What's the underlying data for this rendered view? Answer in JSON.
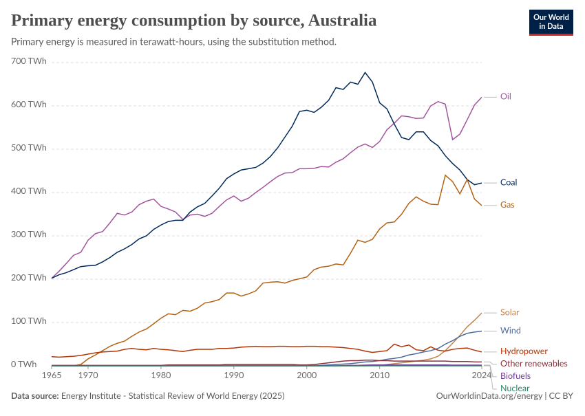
{
  "chart_data": {
    "type": "line",
    "title": "Primary energy consumption by source, Australia",
    "subtitle": "Primary energy is measured in terawatt-hours, using the substitution method.",
    "source_label": "Data source:",
    "source": "Energy Institute - Statistical Review of World Energy (2025)",
    "footer_right": "OurWorldinData.org/energy | CC BY",
    "logo": {
      "line1": "Our World",
      "line2": "in Data"
    },
    "x": [
      1965,
      1966,
      1967,
      1968,
      1969,
      1970,
      1971,
      1972,
      1973,
      1974,
      1975,
      1976,
      1977,
      1978,
      1979,
      1980,
      1981,
      1982,
      1983,
      1984,
      1985,
      1986,
      1987,
      1988,
      1989,
      1990,
      1991,
      1992,
      1993,
      1994,
      1995,
      1996,
      1997,
      1998,
      1999,
      2000,
      2001,
      2002,
      2003,
      2004,
      2005,
      2006,
      2007,
      2008,
      2009,
      2010,
      2011,
      2012,
      2013,
      2014,
      2015,
      2016,
      2017,
      2018,
      2019,
      2020,
      2021,
      2022,
      2023,
      2024
    ],
    "xlim": [
      1965,
      2024
    ],
    "xticks": [
      1965,
      1970,
      1980,
      1990,
      2000,
      2010,
      2024
    ],
    "ylim": [
      0,
      700
    ],
    "yticks": [
      {
        "value": 0,
        "label": "0 TWh"
      },
      {
        "value": 100,
        "label": "100 TWh"
      },
      {
        "value": 200,
        "label": "200 TWh"
      },
      {
        "value": 300,
        "label": "300 TWh"
      },
      {
        "value": 400,
        "label": "400 TWh"
      },
      {
        "value": 500,
        "label": "500 TWh"
      },
      {
        "value": 600,
        "label": "600 TWh"
      },
      {
        "value": 700,
        "label": "700 TWh"
      }
    ],
    "grid": true,
    "series": [
      {
        "name": "Oil",
        "color": "#a2559c",
        "values": [
          202,
          218,
          236,
          255,
          262,
          290,
          305,
          310,
          330,
          352,
          348,
          355,
          372,
          380,
          385,
          368,
          362,
          355,
          338,
          348,
          350,
          345,
          352,
          368,
          383,
          392,
          380,
          387,
          400,
          412,
          425,
          437,
          445,
          446,
          455,
          455,
          456,
          460,
          459,
          470,
          478,
          492,
          505,
          512,
          504,
          518,
          545,
          560,
          577,
          575,
          571,
          572,
          600,
          610,
          604,
          522,
          535,
          568,
          602,
          620
        ]
      },
      {
        "name": "Coal",
        "color": "#00295b",
        "values": [
          202,
          210,
          215,
          222,
          229,
          231,
          232,
          240,
          250,
          262,
          270,
          280,
          293,
          300,
          315,
          325,
          333,
          336,
          336,
          355,
          367,
          375,
          392,
          410,
          432,
          443,
          452,
          455,
          458,
          468,
          483,
          503,
          528,
          553,
          587,
          590,
          585,
          597,
          613,
          642,
          638,
          655,
          650,
          677,
          655,
          607,
          593,
          558,
          527,
          522,
          540,
          540,
          520,
          508,
          485,
          467,
          452,
          430,
          418,
          422
        ]
      },
      {
        "name": "Gas",
        "color": "#b16214",
        "values": [
          0,
          0,
          0,
          0,
          3,
          16,
          25,
          35,
          45,
          52,
          57,
          68,
          78,
          85,
          97,
          110,
          120,
          118,
          128,
          126,
          133,
          145,
          148,
          153,
          168,
          168,
          161,
          166,
          173,
          191,
          193,
          194,
          191,
          197,
          201,
          205,
          222,
          228,
          230,
          235,
          233,
          260,
          290,
          285,
          292,
          316,
          330,
          332,
          350,
          375,
          390,
          380,
          373,
          372,
          440,
          425,
          397,
          430,
          385,
          370
        ]
      },
      {
        "name": "Solar",
        "color": "#c0834a",
        "values": [
          0,
          0,
          0,
          0,
          0,
          0,
          0,
          0,
          0,
          0,
          0,
          0,
          0,
          0,
          0,
          0,
          0,
          0,
          0,
          0,
          0,
          0,
          0,
          0,
          0,
          0,
          0,
          0,
          0,
          0,
          0,
          0,
          0,
          0,
          0,
          0,
          0,
          0,
          0,
          0,
          0,
          0,
          0,
          0,
          0.5,
          1,
          3,
          5,
          7,
          9,
          11,
          13,
          16,
          22,
          35,
          52,
          70,
          90,
          105,
          122
        ]
      },
      {
        "name": "Wind",
        "color": "#4c6a9c",
        "values": [
          0,
          0,
          0,
          0,
          0,
          0,
          0,
          0,
          0,
          0,
          0,
          0,
          0,
          0,
          0,
          0,
          0,
          0,
          0,
          0,
          0,
          0,
          0,
          0,
          0,
          0,
          0,
          0,
          0,
          0,
          0,
          0,
          0,
          0,
          0,
          0,
          0.5,
          1,
          2,
          3,
          4,
          5,
          7,
          9,
          10,
          12,
          15,
          17,
          20,
          25,
          28,
          32,
          35,
          40,
          50,
          58,
          68,
          75,
          78,
          80
        ]
      },
      {
        "name": "Hydropower",
        "color": "#b13507",
        "values": [
          21,
          20,
          21,
          22,
          24,
          27,
          30,
          32,
          33,
          34,
          38,
          40,
          38,
          37,
          40,
          38,
          37,
          35,
          33,
          36,
          38,
          38,
          38,
          40,
          40,
          41,
          43,
          44,
          45,
          44,
          44,
          45,
          45,
          44,
          44,
          45,
          45,
          44,
          44,
          43,
          42,
          40,
          38,
          34,
          31,
          33,
          35,
          50,
          44,
          48,
          37,
          35,
          44,
          36,
          34,
          38,
          40,
          41,
          36,
          32
        ]
      },
      {
        "name": "Other renewables",
        "color": "#883039",
        "values": [
          1,
          1,
          1,
          1,
          1,
          1,
          1,
          1,
          1,
          1,
          1,
          1,
          1,
          1,
          1,
          1,
          2,
          2,
          2,
          2,
          2,
          2,
          2,
          2,
          3,
          3,
          3,
          3,
          3,
          3,
          3,
          3,
          3,
          3,
          2,
          2,
          3,
          5,
          7,
          9,
          11,
          12,
          12,
          13,
          13,
          12,
          12,
          11,
          11,
          11,
          11,
          11,
          11,
          11,
          11,
          10,
          10,
          10,
          9,
          9
        ]
      },
      {
        "name": "Biofuels",
        "color": "#6d3e91",
        "values": [
          0,
          0,
          0,
          0,
          0,
          0,
          0,
          0,
          0,
          0,
          0,
          0,
          0,
          0,
          0,
          0,
          0,
          0,
          0,
          0,
          0,
          0,
          0,
          0,
          0,
          0,
          0,
          0,
          0,
          0,
          0,
          0,
          0,
          0,
          0,
          0,
          0,
          0,
          0,
          0,
          0.5,
          1,
          1,
          1.5,
          2,
          2,
          2,
          2,
          2,
          2,
          2,
          2,
          2,
          2,
          2,
          1.5,
          1.5,
          1.5,
          1.5,
          1.5
        ]
      },
      {
        "name": "Nuclear",
        "color": "#2c8465",
        "values": [
          0,
          0,
          0,
          0,
          0,
          0,
          0,
          0,
          0,
          0,
          0,
          0,
          0,
          0,
          0,
          0,
          0,
          0,
          0,
          0,
          0,
          0,
          0,
          0,
          0,
          0,
          0,
          0,
          0,
          0,
          0,
          0,
          0,
          0,
          0,
          0,
          0,
          0,
          0,
          0,
          0,
          0,
          0,
          0,
          0,
          0,
          0,
          0,
          0,
          0,
          0,
          0,
          0,
          0,
          0,
          0,
          0,
          0,
          0,
          0
        ]
      }
    ]
  }
}
